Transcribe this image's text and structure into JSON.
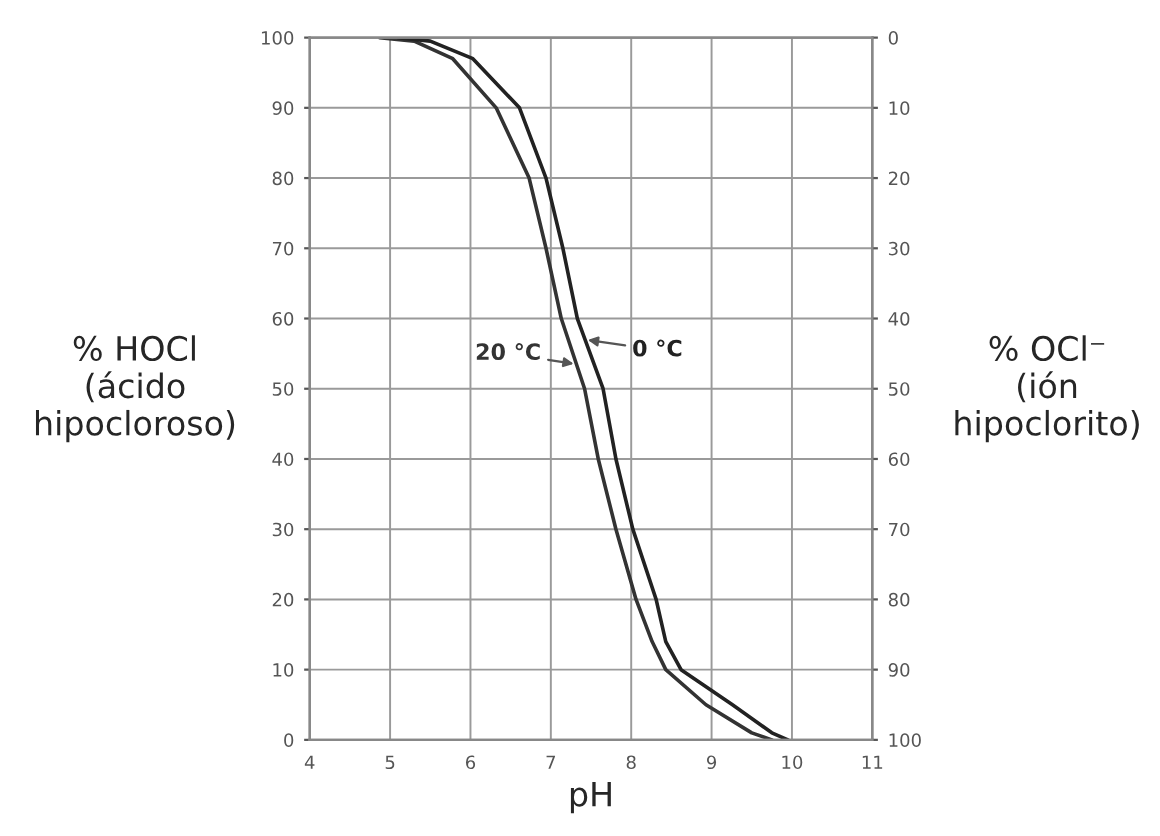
{
  "chart_data": {
    "type": "line",
    "xlabel": "pH",
    "ylabel": "% HOCl\n(ácido\nhipocloroso)",
    "y2label": "% OCl⁻\n(ión\nhipoclorito)",
    "xlim": [
      4,
      11
    ],
    "xticks": [
      4,
      5,
      6,
      7,
      8,
      9,
      10,
      11
    ],
    "ylim": [
      0,
      100
    ],
    "yticks": [
      0,
      10,
      20,
      30,
      40,
      50,
      60,
      70,
      80,
      90,
      100
    ],
    "y2lim": [
      100,
      0
    ],
    "y2ticks": [
      0,
      10,
      20,
      30,
      40,
      50,
      60,
      70,
      80,
      90,
      100
    ],
    "grid": true,
    "legend": false,
    "marker": "none",
    "line_style": "solid",
    "series": [
      {
        "name": "20 °C",
        "color": "#333333",
        "x": [
          4.87,
          5.3,
          5.78,
          6.32,
          6.73,
          6.94,
          7.13,
          7.42,
          7.59,
          7.81,
          8.06,
          8.26,
          8.43,
          8.93,
          9.5,
          9.75
        ],
        "values": [
          100,
          99.5,
          97,
          90,
          80,
          70,
          60,
          50,
          40,
          30,
          20,
          14,
          10,
          5,
          1,
          0
        ]
      },
      {
        "name": "0 °C",
        "color": "#222222",
        "x": [
          5.1,
          5.5,
          6.03,
          6.61,
          6.94,
          7.15,
          7.33,
          7.65,
          7.81,
          8.02,
          8.31,
          8.43,
          8.62,
          9.26,
          9.75,
          9.95
        ],
        "values": [
          100,
          99.5,
          97,
          90,
          80,
          70,
          60,
          50,
          40,
          30,
          20,
          14,
          10,
          5,
          1,
          0
        ]
      }
    ]
  }
}
